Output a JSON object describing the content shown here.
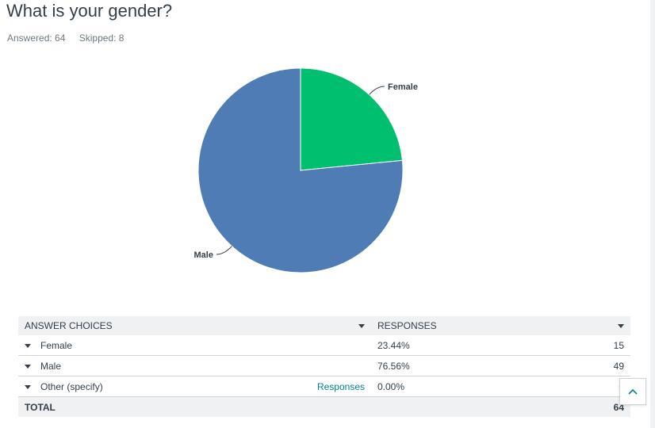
{
  "question": {
    "title": "What is your gender?",
    "answered": "Answered: 64",
    "skipped": "Skipped: 8"
  },
  "chart_data": {
    "type": "pie",
    "categories": [
      "Female",
      "Male"
    ],
    "values": [
      23.44,
      76.56
    ],
    "colors": [
      "#00bf6f",
      "#507cb6"
    ],
    "title": ""
  },
  "table": {
    "header_choices": "ANSWER CHOICES",
    "header_responses": "RESPONSES",
    "rows": [
      {
        "choice": "Female",
        "link": "",
        "percent": "23.44%",
        "count": "15"
      },
      {
        "choice": "Male",
        "link": "",
        "percent": "76.56%",
        "count": "49"
      },
      {
        "choice": "Other (specify)",
        "link": "Responses",
        "percent": "0.00%",
        "count": "0"
      }
    ],
    "total_label": "TOTAL",
    "total_count": "64"
  },
  "icons": {
    "scroll_top": "chevron-up-icon",
    "sort": "caret-down-icon"
  }
}
